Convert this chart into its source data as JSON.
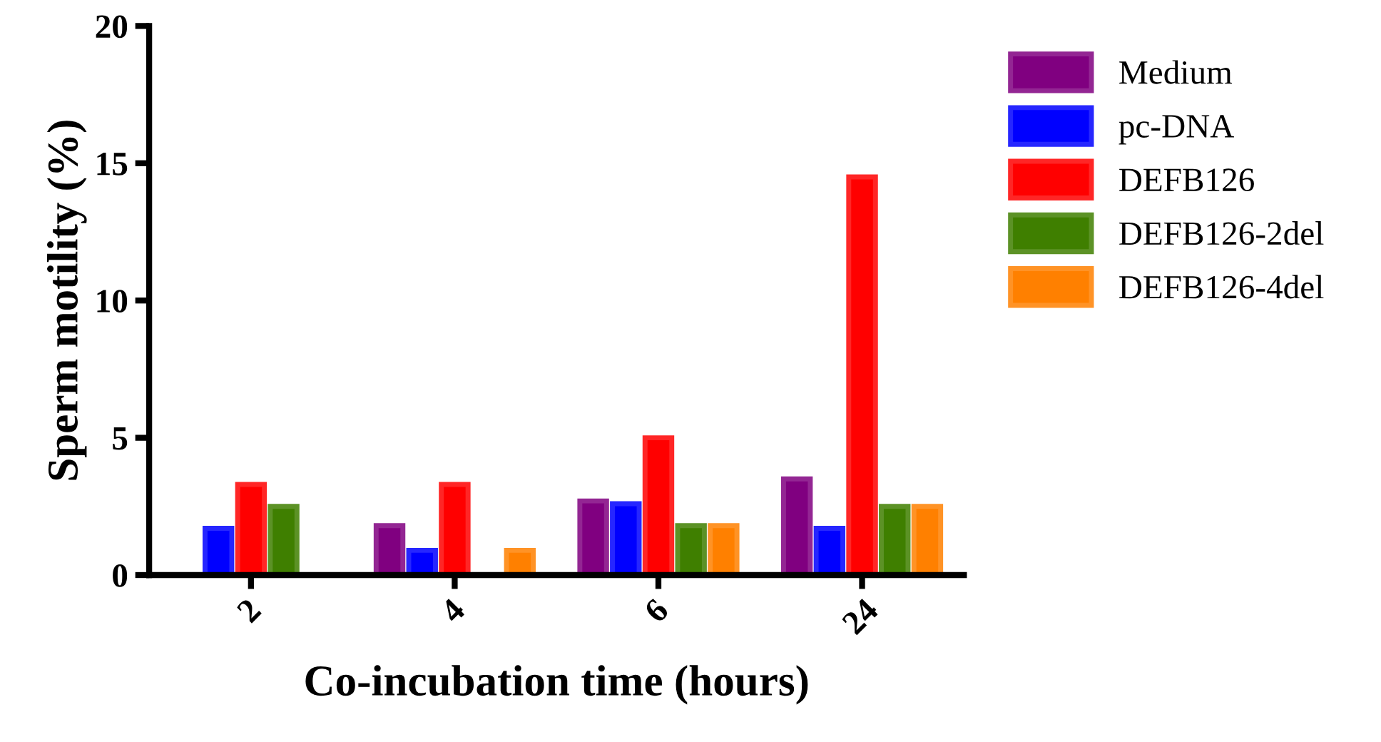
{
  "chart_data": {
    "type": "bar",
    "xlabel": "Co-incubation time (hours)",
    "ylabel": "Sperm motility (%)",
    "categories": [
      "2",
      "4",
      "6",
      "24"
    ],
    "series": [
      {
        "name": "Medium",
        "color": "#800080",
        "values": [
          null,
          1.8,
          2.7,
          3.5
        ]
      },
      {
        "name": "pc-DNA",
        "color": "#0000ff",
        "values": [
          1.7,
          0.9,
          2.6,
          1.7
        ]
      },
      {
        "name": "DEFB126",
        "color": "#ff0000",
        "values": [
          3.3,
          3.3,
          5.0,
          14.5
        ]
      },
      {
        "name": "DEFB126-2del",
        "color": "#3f7f00",
        "values": [
          2.5,
          null,
          1.8,
          2.5
        ]
      },
      {
        "name": "DEFB126-4del",
        "color": "#ff8000",
        "values": [
          null,
          0.9,
          1.8,
          2.5
        ]
      }
    ],
    "ylim": [
      0,
      20
    ],
    "yticks": [
      0,
      5,
      10,
      15,
      20
    ],
    "grid": false,
    "legend": "right"
  }
}
